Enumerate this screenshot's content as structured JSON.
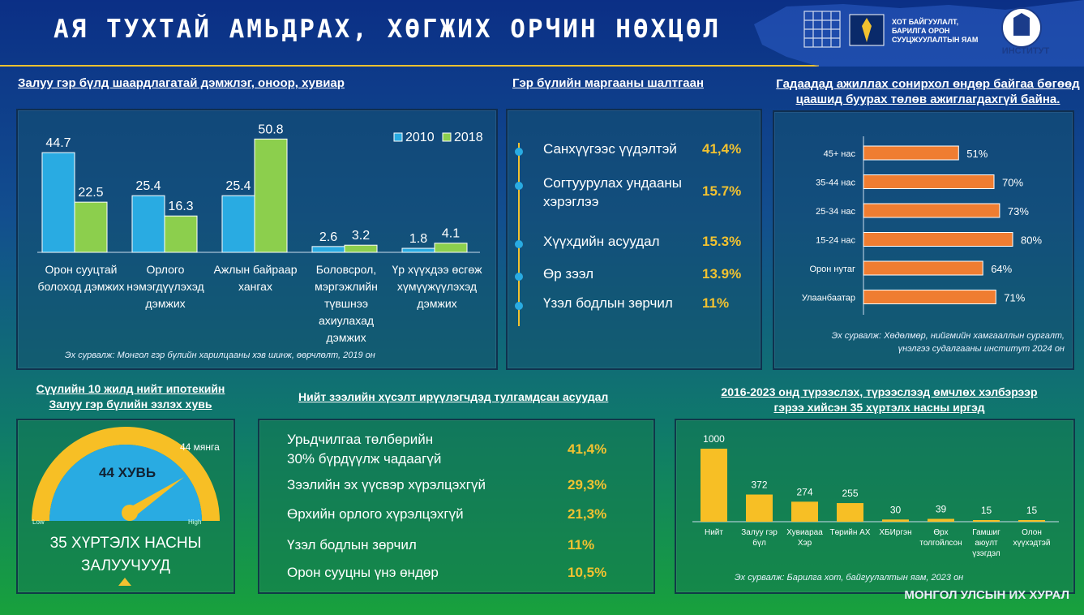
{
  "header": {
    "title": "АЯ ТУХТАЙ АМЬДРАХ, ХӨГЖИХ ОРЧИН НӨХЦӨЛ",
    "ministry": "ХОТ БАЙГУУЛАЛТ, БАРИЛГА ОРОН СУУЦЖУУЛАЛТЫН ЯАМ",
    "institute": "ИНСТИТУТ",
    "accent": "#f2c230"
  },
  "section1": {
    "title": "Залуу гэр бүлд шаардлагатай дэмжлэг, оноор, хувиар",
    "source": "Эх сурвалж: Монгол гэр бүлийн харилцааны хэв шинж, өөрчлөлт, 2019 он",
    "categories": [
      "Орон сууцтай болоход дэмжих",
      "Орлого нэмэгдүүлэхэд дэмжих",
      "Ажлын байраар хангах",
      "Боловсрол, мэргэжлийн түвшнээ ахиулахад дэмжих",
      "Үр хүүхдээ өсгөж хүмүүжүүлэхэд дэмжих"
    ]
  },
  "chart_data": [
    {
      "type": "bar",
      "categories": [
        "Орон сууцтай болоход дэмжих",
        "Орлого нэмэгдүүлэхэд дэмжих",
        "Ажлын байраар хангах",
        "Боловсрол, мэргэжлийн түвшнээ ахиулахад дэмжих",
        "Үр хүүхдээ өсгөж хүмүүжүүлэхэд дэмжих"
      ],
      "series": [
        {
          "name": "2010",
          "values": [
            44.7,
            25.4,
            25.4,
            2.6,
            1.8
          ],
          "color": "#29abe2"
        },
        {
          "name": "2018",
          "values": [
            22.5,
            16.3,
            50.8,
            3.2,
            4.1
          ],
          "color": "#8ccf4d"
        }
      ],
      "ylim": [
        0,
        55
      ],
      "legend": "top-right"
    },
    {
      "type": "bar",
      "orientation": "horizontal",
      "categories": [
        "45+ нас",
        "35-44 нас",
        "25-34 нас",
        "15-24 нас",
        "Орон нутаг",
        "Улаанбаатар"
      ],
      "values": [
        51,
        70,
        73,
        80,
        64,
        71
      ],
      "value_labels": [
        "51%",
        "70%",
        "73%",
        "80%",
        "64%",
        "71%"
      ],
      "color": "#ef7d31",
      "xlim": [
        0,
        100
      ]
    },
    {
      "type": "bar",
      "categories": [
        "Нийт",
        "Залуу гэр бүл",
        "Хувиараа Хэр",
        "Төрийн АХ",
        "ХБИргэн",
        "Өрх толгойлсон",
        "Гамшиг аюулт үзэгдэл",
        "Олон хүүхэдтэй"
      ],
      "values": [
        1000,
        372,
        274,
        255,
        30,
        39,
        15,
        15
      ],
      "color": "#f7bf25",
      "ylim": [
        0,
        1000
      ]
    }
  ],
  "section2": {
    "title": "Гэр бүлийн маргааны шалтгаан",
    "items": [
      {
        "label": "Санхүүгээс үүдэлтэй",
        "value": "41,4%"
      },
      {
        "label": "Согтуурулах ундааны хэрэглээ",
        "value": "15.7%"
      },
      {
        "label": "Хүүхдийн асуудал",
        "value": "15.3%"
      },
      {
        "label": "Өр зээл",
        "value": "13.9%"
      },
      {
        "label": "Үзэл бодлын зөрчил",
        "value": "11%"
      }
    ]
  },
  "section3": {
    "title_line1": "Гадаадад ажиллах сонирхол өндөр байгаа бөгөөд",
    "title_line2": "цаашид буурах төлөв ажиглагдахгүй байна.",
    "source_line1": "Эх сурвалж: Хөдөлмөр, нийгмийн хамгааллын сургалт,",
    "source_line2": "үнэлгээ судалгааны институт 2024 он"
  },
  "section4": {
    "title_line1": "Сүүлийн 10 жилд нийт ипотекийн",
    "title_line2": "Залуу гэр бүлийн эзлэх хувь",
    "gauge_value_label": "44 ХУВЬ",
    "gauge_value": 0.44,
    "gauge_top_label": "44 мянга",
    "low": "Low",
    "high": "High",
    "caption_line1": "35 ХҮРТЭЛХ НАСНЫ",
    "caption_line2": "ЗАЛУУЧУУД"
  },
  "section5": {
    "title": "Нийт зээлийн хүсэлт ирүүлэгчдэд тулгамдсан асуудал",
    "items": [
      {
        "label1": "Урьдчилгаа төлбөрийн",
        "label2": "30% бүрдүүлж чадаагүй",
        "value": "41,4%"
      },
      {
        "label1": "Зээлийн эх үүсвэр хүрэлцэхгүй",
        "label2": "",
        "value": "29,3%"
      },
      {
        "label1": "Өрхийн орлого хүрэлцэхгүй",
        "label2": "",
        "value": "21,3%"
      },
      {
        "label1": "Үзэл бодлын зөрчил",
        "label2": "",
        "value": "11%"
      },
      {
        "label1": "Орон сууцны үнэ өндөр",
        "label2": "",
        "value": "10,5%"
      }
    ]
  },
  "section6": {
    "title_line1": "2016-2023 онд түрээслэх, түрээслээд өмчлөх хэлбэрээр",
    "title_line2": "гэрээ хийсэн 35 хүртэлх насны иргэд",
    "source": "Эх сурвалж: Барилга хот, байгуулалтын яам, 2023 он",
    "cat_lines": [
      [
        "Нийт"
      ],
      [
        "Залуу гэр",
        "бүл"
      ],
      [
        "Хувиараа",
        "Хэр"
      ],
      [
        "Төрийн АХ"
      ],
      [
        "ХБИргэн"
      ],
      [
        "Өрх",
        "толгойлсон"
      ],
      [
        "Гамшиг",
        "аюулт",
        "үзэгдэл"
      ],
      [
        "Олон",
        "хүүхэдтэй"
      ]
    ]
  },
  "footer": "МОНГОЛ УЛСЫН ИХ ХУРАЛ"
}
